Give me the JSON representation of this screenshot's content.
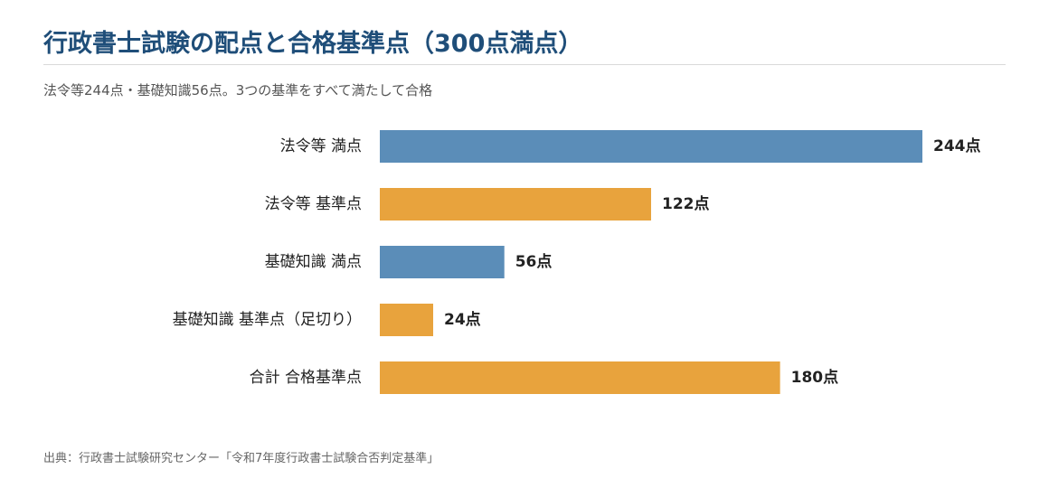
{
  "title": "行政書士試験の配点と合格基準点（300点満点）",
  "subtitle": "法令等244点・基礎知識56点。3つの基準をすべて満たして合格",
  "source": "出典：行政書士試験研究センター「令和7年度行政書士試験合否判定基準」",
  "colors": {
    "full_score": "#5b8db8",
    "passing_score": "#e8a33d",
    "title": "#1f4e79"
  },
  "chart_data": {
    "type": "bar",
    "orientation": "horizontal",
    "categories": [
      "法令等 満点",
      "法令等 基準点",
      "基礎知識 満点",
      "基礎知識 基準点（足切り）",
      "合計 合格基準点"
    ],
    "values": [
      244,
      122,
      56,
      24,
      180
    ],
    "value_labels": [
      "244点",
      "122点",
      "56点",
      "24点",
      "180点"
    ],
    "bar_kinds": [
      "full_score",
      "passing_score",
      "full_score",
      "passing_score",
      "passing_score"
    ],
    "xlim": [
      0,
      244
    ],
    "grid": false,
    "legend": "none"
  }
}
